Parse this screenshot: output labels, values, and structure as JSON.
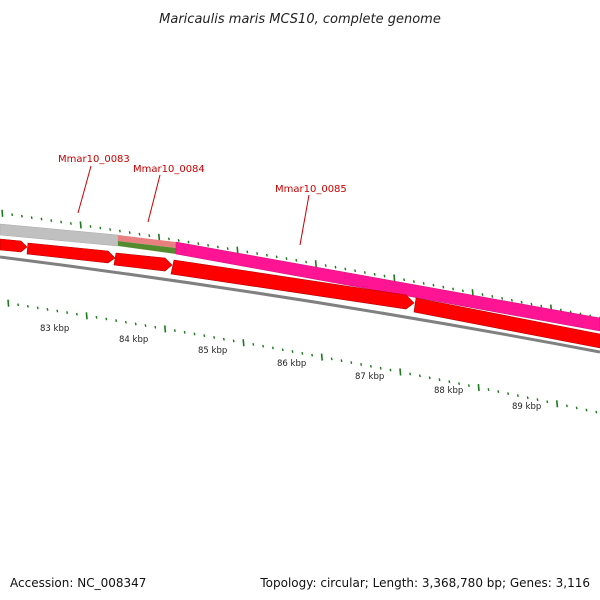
{
  "title": "Maricaulis maris MCS10, complete genome",
  "footer": {
    "accession": "Accession: NC_008347",
    "summary": "Topology: circular; Length: 3,368,780 bp; Genes: 3,116"
  },
  "colors": {
    "cds": "#ff0000",
    "highlight_gene": "#ff1493",
    "gray_gene": "#c0c0c0",
    "green_gene": "#558b2f",
    "pink_gene": "#e88080",
    "tick": "#1b7a1b",
    "label": "#cc0000",
    "backbone": "#808080"
  },
  "gene_labels": [
    {
      "name": "Mmar10_0083"
    },
    {
      "name": "Mmar10_0084"
    },
    {
      "name": "Mmar10_0085"
    }
  ],
  "kbp_ticks": [
    "83 kbp",
    "84 kbp",
    "85 kbp",
    "86 kbp",
    "87 kbp",
    "88 kbp",
    "89 kbp"
  ]
}
